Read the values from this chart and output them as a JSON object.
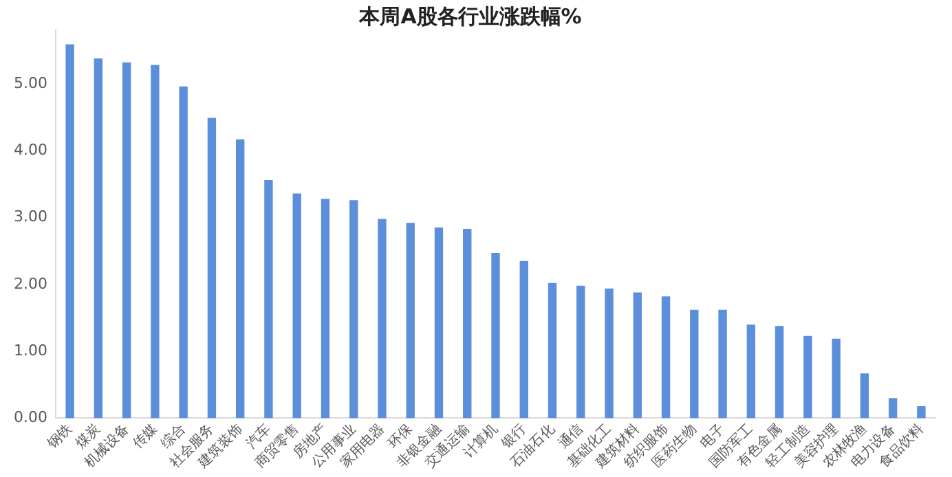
{
  "chart_data": {
    "type": "bar",
    "title": "本周A股各行业涨跌幅%",
    "categories": [
      "钢铁",
      "煤炭",
      "机械设备",
      "传媒",
      "综合",
      "社会服务",
      "建筑装饰",
      "汽车",
      "商贸零售",
      "房地产",
      "公用事业",
      "家用电器",
      "环保",
      "非银金融",
      "交通运输",
      "计算机",
      "银行",
      "石油石化",
      "通信",
      "基础化工",
      "建筑材料",
      "纺织服饰",
      "医药生物",
      "电子",
      "国防军工",
      "有色金属",
      "轻工制造",
      "美容护理",
      "农林牧渔",
      "电力设备",
      "食品饮料"
    ],
    "values": [
      5.59,
      5.38,
      5.32,
      5.28,
      4.96,
      4.49,
      4.17,
      3.56,
      3.36,
      3.28,
      3.26,
      2.98,
      2.92,
      2.85,
      2.83,
      2.47,
      2.35,
      2.02,
      1.98,
      1.94,
      1.88,
      1.82,
      1.62,
      1.62,
      1.4,
      1.38,
      1.23,
      1.19,
      0.67,
      0.3,
      0.18
    ],
    "color": "#5b8fdc",
    "ylim": [
      0,
      5.8
    ],
    "yticks": [
      {
        "value": 0,
        "label": "0.00"
      },
      {
        "value": 1,
        "label": "1.00"
      },
      {
        "value": 2,
        "label": "2.00"
      },
      {
        "value": 3,
        "label": "3.00"
      },
      {
        "value": 4,
        "label": "4.00"
      },
      {
        "value": 5,
        "label": "5.00"
      }
    ],
    "grid": false,
    "legend": false
  }
}
